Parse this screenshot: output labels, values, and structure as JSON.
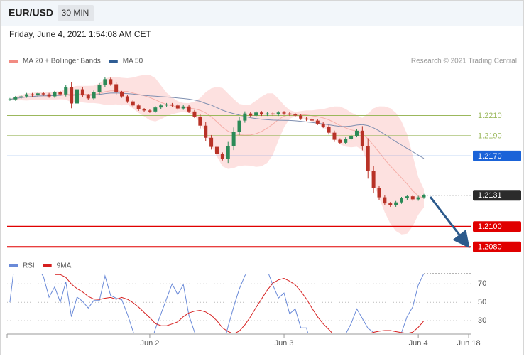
{
  "header": {
    "symbol": "EUR/USD",
    "interval": "30 MIN",
    "timestamp": "Friday, June 4, 2021 1:54:08 AM CET"
  },
  "chart_data": [
    {
      "type": "candlestick",
      "legend": [
        {
          "name": "MA 20 + Bollinger Bands",
          "color": "#f28b82"
        },
        {
          "name": "MA 50",
          "color": "#2f5d94"
        }
      ],
      "source": "Research © 2021 Trading Central",
      "x": [
        -25,
        -24,
        -23,
        -22,
        -21,
        -20,
        -19,
        -18,
        -17,
        -16,
        -15,
        -14,
        -13,
        -12,
        -11,
        -10,
        -9,
        -8,
        -7,
        -6,
        -5,
        -4,
        -3,
        -2,
        -1,
        0,
        1,
        2,
        3,
        4,
        5,
        6,
        7,
        8,
        9,
        10,
        11,
        12,
        13,
        14,
        15,
        16,
        17,
        18,
        19,
        20,
        21,
        22,
        23,
        24,
        25,
        26,
        27,
        28,
        29,
        30,
        31,
        32,
        33,
        34,
        35,
        36,
        37,
        38,
        39,
        40,
        41,
        42,
        43,
        44,
        45,
        46,
        47,
        48,
        49
      ],
      "closes": [
        1.2226,
        1.2228,
        1.2229,
        1.2231,
        1.223,
        1.2232,
        1.2231,
        1.2229,
        1.2233,
        1.2231,
        1.2238,
        1.2222,
        1.2236,
        1.223,
        1.2227,
        1.2233,
        1.224,
        1.2246,
        1.2241,
        1.2233,
        1.2229,
        1.2224,
        1.222,
        1.2216,
        1.2215,
        1.2214,
        1.2218,
        1.222,
        1.2221,
        1.222,
        1.2217,
        1.2219,
        1.2214,
        1.2209,
        1.22,
        1.2188,
        1.2179,
        1.2172,
        1.2167,
        1.218,
        1.2194,
        1.2205,
        1.2212,
        1.221,
        1.2213,
        1.2211,
        1.2212,
        1.2211,
        1.2213,
        1.2212,
        1.2211,
        1.221,
        1.2207,
        1.2206,
        1.2205,
        1.2202,
        1.2199,
        1.2193,
        1.2186,
        1.2183,
        1.2187,
        1.219,
        1.2195,
        1.218,
        1.2155,
        1.2138,
        1.2129,
        1.2123,
        1.2121,
        1.2124,
        1.2128,
        1.213,
        1.2127,
        1.2129,
        1.2131
      ],
      "up_color": "#2b8a57",
      "down_color": "#b83227",
      "xlim": [
        -25.5,
        57.5
      ],
      "xticks": [
        {
          "value": 0,
          "label": "Jun 2"
        },
        {
          "value": 24,
          "label": "Jun 3"
        },
        {
          "value": 48,
          "label": "Jun 4"
        },
        {
          "value": 57,
          "label": "Jun 18"
        }
      ],
      "ylim": [
        1.2071,
        1.2254
      ],
      "levels": [
        {
          "value": 1.221,
          "label": "1.2210",
          "color": "#9bb85c",
          "filled": false,
          "style": "thin"
        },
        {
          "value": 1.219,
          "label": "1.2190",
          "color": "#9bb85c",
          "filled": false,
          "style": "thin"
        },
        {
          "value": 1.217,
          "label": "1.2170",
          "color": "#1a63d8",
          "filled": true,
          "style": "solid"
        },
        {
          "value": 1.2131,
          "label": "1.2131",
          "color": "#2b2b2b",
          "filled": true,
          "style": "dotted"
        },
        {
          "value": 1.21,
          "label": "1.2100",
          "color": "#e00000",
          "filled": true,
          "style": "thick"
        },
        {
          "value": 1.208,
          "label": "1.2080",
          "color": "#e00000",
          "filled": true,
          "style": "thick"
        }
      ]
    },
    {
      "type": "line",
      "legend": [
        {
          "name": "RSI",
          "color": "#6a8ad8"
        },
        {
          "name": "9MA",
          "color": "#d61f1f"
        }
      ],
      "ylim": [
        17,
        81
      ],
      "yticks": [
        30,
        50,
        70
      ],
      "grid": true
    }
  ]
}
